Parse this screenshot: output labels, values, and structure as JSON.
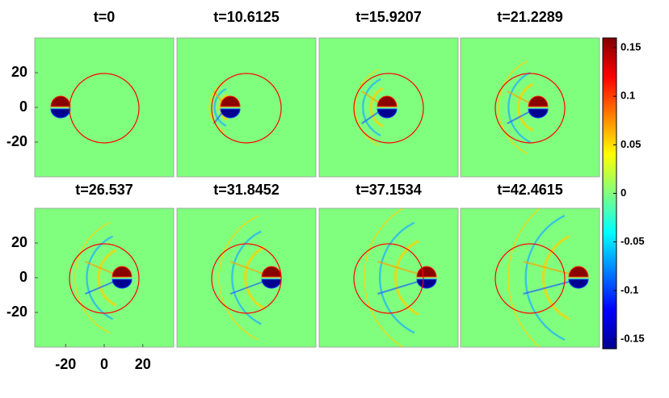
{
  "chart_data": {
    "type": "heatmap",
    "panels": [
      {
        "title": "t=0"
      },
      {
        "title": "t=10.6125"
      },
      {
        "title": "t=15.9207"
      },
      {
        "title": "t=21.2289"
      },
      {
        "title": "t=26.537"
      },
      {
        "title": "t=31.8452"
      },
      {
        "title": "t=37.1534"
      },
      {
        "title": "t=42.4615"
      }
    ],
    "xlim": [
      -36,
      36
    ],
    "ylim": [
      -40,
      40
    ],
    "xticks": [
      -20,
      0,
      20
    ],
    "yticks": [
      20,
      0,
      -20
    ],
    "colorbar": {
      "lim": [
        -0.16,
        0.16
      ],
      "ticks": [
        0.15,
        0.1,
        0.05,
        0,
        -0.05,
        -0.1,
        -0.15
      ]
    }
  }
}
